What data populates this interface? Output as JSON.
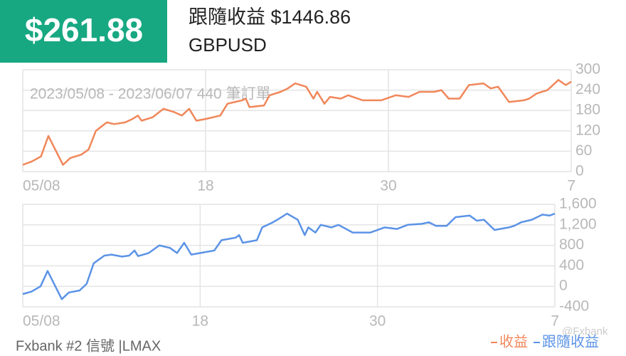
{
  "header": {
    "value": "$261.88",
    "title": "跟隨收益 $1446.86",
    "symbol": "GBPUSD"
  },
  "footer": "Fxbank #2 信號 |LMAX",
  "watermark": "@Fxbank",
  "chart_data": [
    {
      "type": "line",
      "subtitle": "2023/05/08 - 2023/06/07 440 筆訂單",
      "x": [
        0,
        0.5,
        1.0,
        1.4,
        2.2,
        2.6,
        3.2,
        3.6,
        4.0,
        4.6,
        5.0,
        5.6,
        6.0,
        6.3,
        6.5,
        7.1,
        7.7,
        8.3,
        8.7,
        9.1,
        9.5,
        10.0,
        10.8,
        11.2,
        12.0,
        12.2,
        12.4,
        13.2,
        13.5,
        14.1,
        14.5,
        14.9,
        15.5,
        15.9,
        16.1,
        16.5,
        16.8,
        17.4,
        17.8,
        18.6,
        19.6,
        20.4,
        21.1,
        21.7,
        22.5,
        22.9,
        23.3,
        23.9,
        24.4,
        25.2,
        25.6,
        26.0,
        26.6,
        27.4,
        27.7,
        28.1,
        28.7,
        29.3,
        29.7,
        30.0
      ],
      "series": [
        {
          "name": "收益",
          "color": "#f0875a",
          "values": [
            20,
            30,
            45,
            105,
            20,
            40,
            50,
            65,
            120,
            145,
            140,
            145,
            155,
            165,
            150,
            160,
            185,
            175,
            165,
            185,
            150,
            155,
            165,
            200,
            210,
            215,
            190,
            195,
            225,
            235,
            245,
            260,
            250,
            215,
            235,
            200,
            220,
            215,
            225,
            210,
            210,
            225,
            220,
            235,
            235,
            240,
            215,
            215,
            255,
            260,
            245,
            250,
            205,
            210,
            215,
            230,
            240,
            270,
            255,
            265
          ]
        }
      ],
      "xlim": [
        0,
        30
      ],
      "xticks": [
        {
          "value": 0,
          "label": "05/08"
        },
        {
          "value": 10,
          "label": "18"
        },
        {
          "value": 20,
          "label": "30"
        },
        {
          "value": 30,
          "label": "7"
        }
      ],
      "ylim": [
        0,
        300
      ],
      "yticks": [
        0,
        60,
        120,
        180,
        240,
        300
      ],
      "grid": true
    },
    {
      "type": "line",
      "x": [
        0,
        0.5,
        1.0,
        1.4,
        2.2,
        2.6,
        3.2,
        3.6,
        4.0,
        4.6,
        5.0,
        5.6,
        6.0,
        6.3,
        6.5,
        7.1,
        7.7,
        8.3,
        8.7,
        9.1,
        9.5,
        10.0,
        10.8,
        11.2,
        12.0,
        12.2,
        12.4,
        13.2,
        13.5,
        14.1,
        14.5,
        14.9,
        15.5,
        15.9,
        16.1,
        16.5,
        16.8,
        17.4,
        17.8,
        18.6,
        19.6,
        20.4,
        21.1,
        21.7,
        22.5,
        22.9,
        23.3,
        23.9,
        24.4,
        25.2,
        25.6,
        26.0,
        26.6,
        27.4,
        27.7,
        28.1,
        28.7,
        29.3,
        29.7,
        30.0
      ],
      "series": [
        {
          "name": "跟隨收益",
          "color": "#5b93e6",
          "values": [
            -150,
            -100,
            0,
            300,
            -250,
            -120,
            -80,
            50,
            450,
            600,
            620,
            580,
            600,
            700,
            590,
            650,
            800,
            750,
            650,
            850,
            620,
            650,
            700,
            900,
            950,
            1000,
            850,
            900,
            1150,
            1250,
            1330,
            1420,
            1300,
            1000,
            1150,
            1050,
            1200,
            1150,
            1200,
            1050,
            1050,
            1150,
            1120,
            1200,
            1220,
            1250,
            1180,
            1180,
            1350,
            1380,
            1280,
            1300,
            1100,
            1150,
            1180,
            1250,
            1300,
            1400,
            1380,
            1420
          ]
        }
      ],
      "xlim": [
        0,
        30
      ],
      "xticks": [
        {
          "value": 0,
          "label": "05/08"
        },
        {
          "value": 10,
          "label": "18"
        },
        {
          "value": 20,
          "label": "30"
        },
        {
          "value": 30,
          "label": "7"
        }
      ],
      "ylim": [
        -400,
        1600
      ],
      "yticks": [
        -400,
        0,
        400,
        800,
        {
          "value": 1200,
          "label": "1,200"
        },
        {
          "value": 1600,
          "label": "1,600"
        }
      ],
      "grid": true
    }
  ]
}
